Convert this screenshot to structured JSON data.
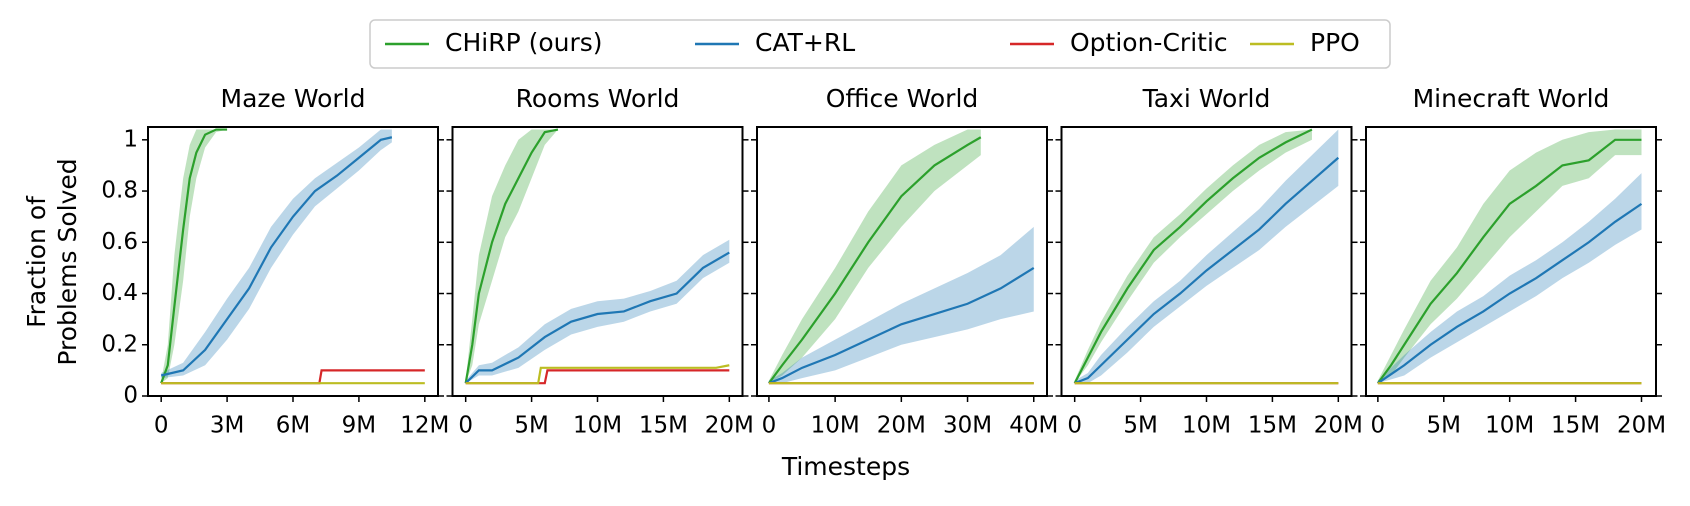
{
  "y_label": [
    "Fraction of",
    "Problems Solved"
  ],
  "x_label": "Timesteps",
  "chart_data": [
    {
      "type": "line",
      "title": "Maze World",
      "xlim": [
        -600000,
        12600000
      ],
      "ylim": [
        0,
        1.05
      ],
      "xticks": [
        0,
        {
          "value": 3000000,
          "label": "3M"
        },
        {
          "value": 6000000,
          "label": "6M"
        },
        {
          "value": 9000000,
          "label": "9M"
        },
        {
          "value": 12000000,
          "label": "12M"
        }
      ],
      "yticks": [
        0.0,
        0.2,
        0.4,
        0.6,
        0.8,
        1.0
      ],
      "series": [
        {
          "name": "CHiRP (ours)",
          "color": "#2ca02c",
          "x": [
            0,
            300000,
            600000,
            1000000,
            1300000,
            1600000,
            2000000,
            2500000,
            3000000
          ],
          "values": [
            0.05,
            0.12,
            0.35,
            0.65,
            0.85,
            0.95,
            1.02,
            1.04,
            1.04
          ],
          "lower": [
            0.05,
            0.07,
            0.2,
            0.45,
            0.7,
            0.85,
            0.97,
            1.03,
            1.04
          ],
          "upper": [
            0.06,
            0.2,
            0.55,
            0.85,
            0.98,
            1.04,
            1.04,
            1.04,
            1.04
          ]
        },
        {
          "name": "CAT+RL",
          "color": "#1f77b4",
          "x": [
            0,
            1000000,
            2000000,
            3000000,
            4000000,
            5000000,
            6000000,
            7000000,
            8000000,
            9000000,
            10000000,
            10500000
          ],
          "values": [
            0.08,
            0.1,
            0.18,
            0.3,
            0.42,
            0.58,
            0.7,
            0.8,
            0.86,
            0.93,
            1.0,
            1.01
          ],
          "lower": [
            0.07,
            0.08,
            0.12,
            0.22,
            0.34,
            0.5,
            0.63,
            0.74,
            0.81,
            0.88,
            0.96,
            0.99
          ],
          "upper": [
            0.09,
            0.13,
            0.25,
            0.38,
            0.5,
            0.66,
            0.77,
            0.85,
            0.91,
            0.97,
            1.04,
            1.04
          ]
        },
        {
          "name": "Option-Critic",
          "color": "#d62728",
          "x": [
            0,
            7200000,
            7300000,
            12000000
          ],
          "values": [
            0.05,
            0.05,
            0.1,
            0.1
          ]
        },
        {
          "name": "PPO",
          "color": "#bcbd22",
          "x": [
            0,
            12000000
          ],
          "values": [
            0.05,
            0.05
          ]
        }
      ]
    },
    {
      "type": "line",
      "title": "Rooms World",
      "xlim": [
        -1000000,
        21000000
      ],
      "ylim": [
        0,
        1.05
      ],
      "xticks": [
        0,
        {
          "value": 5000000,
          "label": "5M"
        },
        {
          "value": 10000000,
          "label": "10M"
        },
        {
          "value": 15000000,
          "label": "15M"
        },
        {
          "value": 20000000,
          "label": "20M"
        }
      ],
      "yticks": [
        0.0,
        0.2,
        0.4,
        0.6,
        0.8,
        1.0
      ],
      "series": [
        {
          "name": "CHiRP (ours)",
          "color": "#2ca02c",
          "x": [
            0,
            500000,
            1000000,
            2000000,
            3000000,
            4000000,
            5000000,
            6000000,
            7000000
          ],
          "values": [
            0.05,
            0.2,
            0.4,
            0.6,
            0.75,
            0.85,
            0.95,
            1.03,
            1.04
          ],
          "lower": [
            0.05,
            0.12,
            0.28,
            0.45,
            0.62,
            0.72,
            0.85,
            0.98,
            1.04
          ],
          "upper": [
            0.06,
            0.3,
            0.55,
            0.78,
            0.9,
            1.0,
            1.04,
            1.04,
            1.04
          ]
        },
        {
          "name": "CAT+RL",
          "color": "#1f77b4",
          "x": [
            0,
            1000000,
            2000000,
            4000000,
            6000000,
            8000000,
            10000000,
            12000000,
            14000000,
            16000000,
            18000000,
            20000000
          ],
          "values": [
            0.05,
            0.1,
            0.1,
            0.15,
            0.23,
            0.29,
            0.32,
            0.33,
            0.37,
            0.4,
            0.5,
            0.56
          ],
          "lower": [
            0.05,
            0.08,
            0.08,
            0.11,
            0.18,
            0.24,
            0.27,
            0.29,
            0.33,
            0.36,
            0.46,
            0.52
          ],
          "upper": [
            0.06,
            0.12,
            0.13,
            0.19,
            0.28,
            0.34,
            0.37,
            0.38,
            0.41,
            0.45,
            0.55,
            0.61
          ]
        },
        {
          "name": "Option-Critic",
          "color": "#d62728",
          "x": [
            0,
            6000000,
            6200000,
            20000000
          ],
          "values": [
            0.05,
            0.05,
            0.1,
            0.1
          ]
        },
        {
          "name": "PPO",
          "color": "#bcbd22",
          "x": [
            0,
            5500000,
            5700000,
            19000000,
            20000000
          ],
          "values": [
            0.05,
            0.05,
            0.11,
            0.11,
            0.12
          ]
        }
      ]
    },
    {
      "type": "line",
      "title": "Office World",
      "xlim": [
        -1800000,
        42000000
      ],
      "ylim": [
        0,
        1.05
      ],
      "xticks": [
        0,
        {
          "value": 10000000,
          "label": "10M"
        },
        {
          "value": 20000000,
          "label": "20M"
        },
        {
          "value": 30000000,
          "label": "30M"
        },
        {
          "value": 40000000,
          "label": "40M"
        }
      ],
      "yticks": [
        0.0,
        0.2,
        0.4,
        0.6,
        0.8,
        1.0
      ],
      "series": [
        {
          "name": "CHiRP (ours)",
          "color": "#2ca02c",
          "x": [
            0,
            2000000,
            5000000,
            10000000,
            15000000,
            20000000,
            25000000,
            30000000,
            32000000
          ],
          "values": [
            0.05,
            0.12,
            0.22,
            0.4,
            0.6,
            0.78,
            0.9,
            0.98,
            1.01
          ],
          "lower": [
            0.05,
            0.08,
            0.15,
            0.3,
            0.5,
            0.66,
            0.8,
            0.9,
            0.94
          ],
          "upper": [
            0.06,
            0.16,
            0.3,
            0.5,
            0.72,
            0.9,
            0.98,
            1.04,
            1.04
          ]
        },
        {
          "name": "CAT+RL",
          "color": "#1f77b4",
          "x": [
            0,
            2000000,
            5000000,
            10000000,
            15000000,
            20000000,
            25000000,
            30000000,
            35000000,
            40000000
          ],
          "values": [
            0.05,
            0.07,
            0.11,
            0.16,
            0.22,
            0.28,
            0.32,
            0.36,
            0.42,
            0.5
          ],
          "lower": [
            0.05,
            0.05,
            0.07,
            0.1,
            0.15,
            0.2,
            0.23,
            0.26,
            0.3,
            0.33
          ],
          "upper": [
            0.06,
            0.09,
            0.15,
            0.22,
            0.29,
            0.36,
            0.42,
            0.48,
            0.55,
            0.66
          ]
        },
        {
          "name": "Option-Critic",
          "color": "#d62728",
          "x": [
            0,
            40000000
          ],
          "values": [
            0.05,
            0.05
          ]
        },
        {
          "name": "PPO",
          "color": "#bcbd22",
          "x": [
            0,
            40000000
          ],
          "values": [
            0.05,
            0.05
          ]
        }
      ]
    },
    {
      "type": "line",
      "title": "Taxi World",
      "xlim": [
        -1000000,
        21000000
      ],
      "ylim": [
        0,
        1.05
      ],
      "xticks": [
        0,
        {
          "value": 5000000,
          "label": "5M"
        },
        {
          "value": 10000000,
          "label": "10M"
        },
        {
          "value": 15000000,
          "label": "15M"
        },
        {
          "value": 20000000,
          "label": "20M"
        }
      ],
      "yticks": [
        0.0,
        0.2,
        0.4,
        0.6,
        0.8,
        1.0
      ],
      "series": [
        {
          "name": "CHiRP (ours)",
          "color": "#2ca02c",
          "x": [
            0,
            1000000,
            2000000,
            4000000,
            6000000,
            8000000,
            10000000,
            12000000,
            14000000,
            16000000,
            18000000
          ],
          "values": [
            0.05,
            0.15,
            0.25,
            0.42,
            0.57,
            0.66,
            0.76,
            0.85,
            0.93,
            0.99,
            1.04
          ],
          "lower": [
            0.05,
            0.12,
            0.21,
            0.37,
            0.52,
            0.62,
            0.71,
            0.8,
            0.88,
            0.95,
            1.0
          ],
          "upper": [
            0.06,
            0.18,
            0.29,
            0.47,
            0.62,
            0.71,
            0.81,
            0.9,
            0.98,
            1.03,
            1.04
          ]
        },
        {
          "name": "CAT+RL",
          "color": "#1f77b4",
          "x": [
            0,
            1000000,
            2000000,
            4000000,
            6000000,
            8000000,
            10000000,
            12000000,
            14000000,
            16000000,
            18000000,
            20000000
          ],
          "values": [
            0.05,
            0.07,
            0.12,
            0.22,
            0.32,
            0.4,
            0.49,
            0.57,
            0.65,
            0.75,
            0.84,
            0.93
          ],
          "lower": [
            0.05,
            0.05,
            0.08,
            0.17,
            0.27,
            0.35,
            0.43,
            0.5,
            0.57,
            0.66,
            0.74,
            0.82
          ],
          "upper": [
            0.06,
            0.09,
            0.16,
            0.27,
            0.37,
            0.45,
            0.55,
            0.64,
            0.73,
            0.84,
            0.94,
            1.04
          ]
        },
        {
          "name": "Option-Critic",
          "color": "#d62728",
          "x": [
            0,
            20000000
          ],
          "values": [
            0.05,
            0.05
          ]
        },
        {
          "name": "PPO",
          "color": "#bcbd22",
          "x": [
            0,
            20000000
          ],
          "values": [
            0.05,
            0.05
          ]
        }
      ]
    },
    {
      "type": "line",
      "title": "Minecraft World",
      "xlim": [
        -900000,
        21100000
      ],
      "ylim": [
        0,
        1.05
      ],
      "xticks": [
        0,
        {
          "value": 5000000,
          "label": "5M"
        },
        {
          "value": 10000000,
          "label": "10M"
        },
        {
          "value": 15000000,
          "label": "15M"
        },
        {
          "value": 20000000,
          "label": "20M"
        }
      ],
      "yticks": [
        0.0,
        0.2,
        0.4,
        0.6,
        0.8,
        1.0
      ],
      "series": [
        {
          "name": "CHiRP (ours)",
          "color": "#2ca02c",
          "x": [
            0,
            1000000,
            2000000,
            4000000,
            6000000,
            8000000,
            10000000,
            12000000,
            14000000,
            16000000,
            18000000,
            20000000
          ],
          "values": [
            0.05,
            0.12,
            0.2,
            0.36,
            0.48,
            0.62,
            0.75,
            0.82,
            0.9,
            0.92,
            1.0,
            1.0
          ],
          "lower": [
            0.05,
            0.08,
            0.15,
            0.28,
            0.38,
            0.5,
            0.62,
            0.72,
            0.82,
            0.85,
            0.94,
            0.94
          ],
          "upper": [
            0.06,
            0.16,
            0.26,
            0.45,
            0.58,
            0.75,
            0.88,
            0.95,
            1.0,
            1.03,
            1.04,
            1.04
          ]
        },
        {
          "name": "CAT+RL",
          "color": "#1f77b4",
          "x": [
            0,
            2000000,
            4000000,
            6000000,
            8000000,
            10000000,
            12000000,
            14000000,
            16000000,
            18000000,
            20000000
          ],
          "values": [
            0.05,
            0.12,
            0.2,
            0.27,
            0.33,
            0.4,
            0.46,
            0.53,
            0.6,
            0.68,
            0.75
          ],
          "lower": [
            0.05,
            0.08,
            0.15,
            0.21,
            0.27,
            0.33,
            0.39,
            0.46,
            0.52,
            0.59,
            0.65
          ],
          "upper": [
            0.06,
            0.16,
            0.25,
            0.33,
            0.39,
            0.47,
            0.53,
            0.6,
            0.68,
            0.77,
            0.87
          ]
        },
        {
          "name": "Option-Critic",
          "color": "#d62728",
          "x": [
            0,
            20000000
          ],
          "values": [
            0.05,
            0.05
          ]
        },
        {
          "name": "PPO",
          "color": "#bcbd22",
          "x": [
            0,
            20000000
          ],
          "values": [
            0.05,
            0.05
          ]
        }
      ]
    }
  ]
}
